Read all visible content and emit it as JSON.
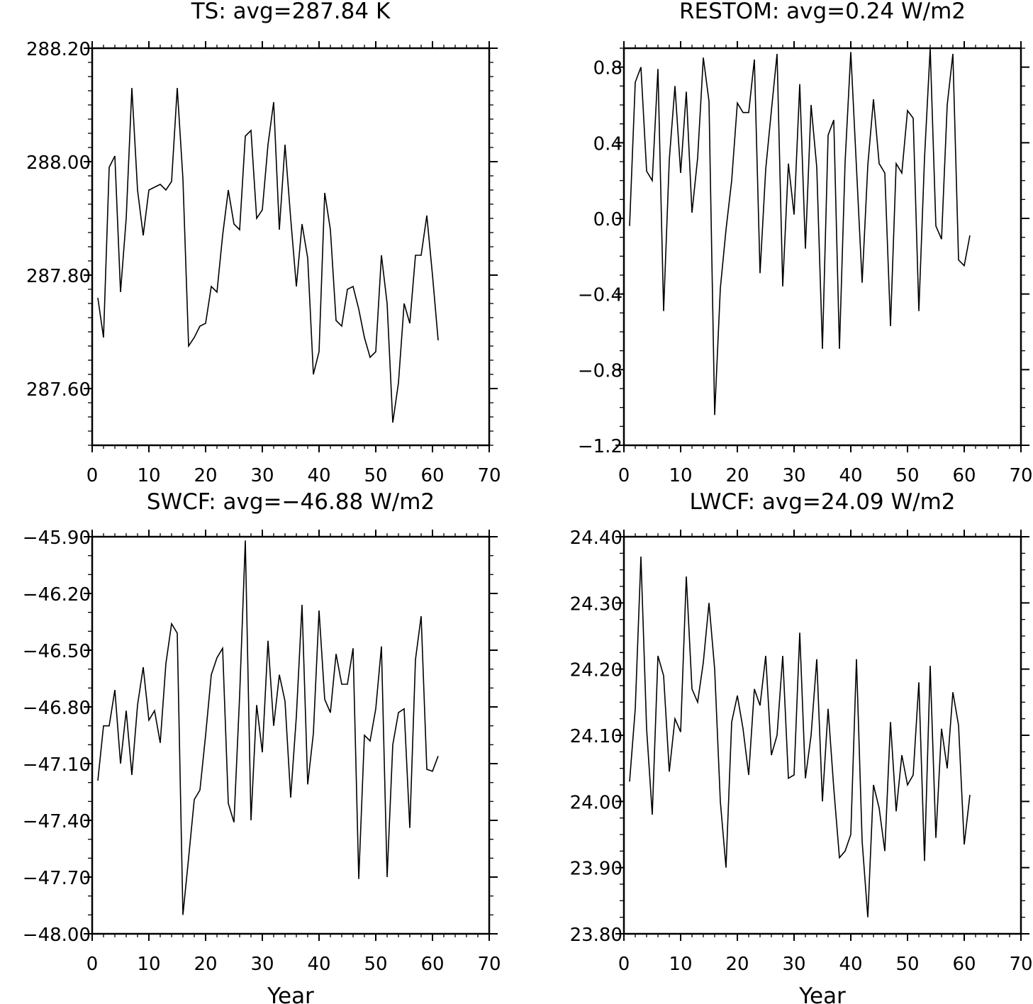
{
  "chart_data": [
    {
      "type": "line",
      "title": "TS: avg=287.84 K",
      "xlabel": "",
      "ylabel": "",
      "xlim": [
        0,
        70
      ],
      "ylim": [
        287.5,
        288.2
      ],
      "xticks": [
        0,
        10,
        20,
        30,
        40,
        50,
        60,
        70
      ],
      "xtick_labels": [
        "0",
        "10",
        "20",
        "30",
        "40",
        "50",
        "60",
        "70"
      ],
      "yticks": [
        287.6,
        287.8,
        288.0,
        288.2
      ],
      "ytick_labels": [
        "287.60",
        "287.80",
        "288.00",
        "288.20"
      ],
      "yminor_step": 0.025,
      "grid": false,
      "x": [
        1,
        2,
        3,
        4,
        5,
        6,
        7,
        8,
        9,
        10,
        11,
        12,
        13,
        14,
        15,
        16,
        17,
        18,
        19,
        20,
        21,
        22,
        23,
        24,
        25,
        26,
        27,
        28,
        29,
        30,
        31,
        32,
        33,
        34,
        35,
        36,
        37,
        38,
        39,
        40,
        41,
        42,
        43,
        44,
        45,
        46,
        47,
        48,
        49,
        50,
        51,
        52,
        53,
        54,
        55,
        56,
        57,
        58,
        59,
        60,
        61
      ],
      "values": [
        287.76,
        287.69,
        287.99,
        288.01,
        287.77,
        287.9,
        288.13,
        287.95,
        287.87,
        287.95,
        287.955,
        287.96,
        287.95,
        287.965,
        288.13,
        287.97,
        287.675,
        287.69,
        287.71,
        287.715,
        287.78,
        287.77,
        287.87,
        287.95,
        287.89,
        287.88,
        288.045,
        288.055,
        287.9,
        287.915,
        288.03,
        288.105,
        287.88,
        288.03,
        287.9,
        287.78,
        287.89,
        287.83,
        287.625,
        287.665,
        287.945,
        287.88,
        287.72,
        287.71,
        287.775,
        287.78,
        287.74,
        287.69,
        287.655,
        287.665,
        287.835,
        287.75,
        287.54,
        287.61,
        287.75,
        287.715,
        287.835,
        287.835,
        287.905,
        287.8,
        287.685
      ]
    },
    {
      "type": "line",
      "title": "RESTOM: avg=0.24 W/m2",
      "xlabel": "",
      "ylabel": "",
      "xlim": [
        0,
        70
      ],
      "ylim": [
        -1.2,
        0.9
      ],
      "xticks": [
        0,
        10,
        20,
        30,
        40,
        50,
        60,
        70
      ],
      "xtick_labels": [
        "0",
        "10",
        "20",
        "30",
        "40",
        "50",
        "60",
        "70"
      ],
      "yticks": [
        -1.2,
        -0.8,
        -0.4,
        0.0,
        0.4,
        0.8
      ],
      "ytick_labels": [
        "−1.2",
        "−0.8",
        "−0.4",
        "0.0",
        "0.4",
        "0.8"
      ],
      "yminor_step": 0.1,
      "grid": false,
      "x": [
        1,
        2,
        3,
        4,
        5,
        6,
        7,
        8,
        9,
        10,
        11,
        12,
        13,
        14,
        15,
        16,
        17,
        18,
        19,
        20,
        21,
        22,
        23,
        24,
        25,
        26,
        27,
        28,
        29,
        30,
        31,
        32,
        33,
        34,
        35,
        36,
        37,
        38,
        39,
        40,
        41,
        42,
        43,
        44,
        45,
        46,
        47,
        48,
        49,
        50,
        51,
        52,
        53,
        54,
        55,
        56,
        57,
        58,
        59,
        60,
        61
      ],
      "values": [
        -0.04,
        0.72,
        0.8,
        0.25,
        0.2,
        0.79,
        -0.49,
        0.31,
        0.7,
        0.24,
        0.67,
        0.03,
        0.32,
        0.85,
        0.62,
        -1.04,
        -0.37,
        -0.06,
        0.2,
        0.61,
        0.56,
        0.56,
        0.84,
        -0.29,
        0.26,
        0.57,
        0.87,
        -0.36,
        0.29,
        0.02,
        0.71,
        -0.16,
        0.6,
        0.27,
        -0.69,
        0.44,
        0.52,
        -0.69,
        0.3,
        0.88,
        0.27,
        -0.34,
        0.28,
        0.63,
        0.29,
        0.24,
        -0.57,
        0.29,
        0.24,
        0.57,
        0.53,
        -0.49,
        0.32,
        0.9,
        -0.04,
        -0.11,
        0.6,
        0.87,
        -0.22,
        -0.25,
        -0.09
      ]
    },
    {
      "type": "line",
      "title": "SWCF: avg=−46.88 W/m2",
      "xlabel": "Year",
      "ylabel": "",
      "xlim": [
        0,
        70
      ],
      "ylim": [
        -48.0,
        -45.9
      ],
      "xticks": [
        0,
        10,
        20,
        30,
        40,
        50,
        60,
        70
      ],
      "xtick_labels": [
        "0",
        "10",
        "20",
        "30",
        "40",
        "50",
        "60",
        "70"
      ],
      "yticks": [
        -48.0,
        -47.7,
        -47.4,
        -47.1,
        -46.8,
        -46.5,
        -46.2,
        -45.9
      ],
      "ytick_labels": [
        "−48.00",
        "−47.70",
        "−47.40",
        "−47.10",
        "−46.80",
        "−46.50",
        "−46.20",
        "−45.90"
      ],
      "yminor_step": 0.1,
      "grid": false,
      "x": [
        1,
        2,
        3,
        4,
        5,
        6,
        7,
        8,
        9,
        10,
        11,
        12,
        13,
        14,
        15,
        16,
        17,
        18,
        19,
        20,
        21,
        22,
        23,
        24,
        25,
        26,
        27,
        28,
        29,
        30,
        31,
        32,
        33,
        34,
        35,
        36,
        37,
        38,
        39,
        40,
        41,
        42,
        43,
        44,
        45,
        46,
        47,
        48,
        49,
        50,
        51,
        52,
        53,
        54,
        55,
        56,
        57,
        58,
        59,
        60,
        61
      ],
      "values": [
        -47.19,
        -46.9,
        -46.9,
        -46.71,
        -47.1,
        -46.82,
        -47.16,
        -46.79,
        -46.59,
        -46.87,
        -46.82,
        -46.99,
        -46.57,
        -46.36,
        -46.41,
        -47.9,
        -47.6,
        -47.29,
        -47.24,
        -46.95,
        -46.63,
        -46.54,
        -46.49,
        -47.31,
        -47.41,
        -46.74,
        -45.92,
        -47.4,
        -46.79,
        -47.04,
        -46.45,
        -46.9,
        -46.63,
        -46.77,
        -47.28,
        -46.85,
        -46.26,
        -47.21,
        -46.94,
        -46.29,
        -46.76,
        -46.83,
        -46.52,
        -46.68,
        -46.68,
        -46.49,
        -47.71,
        -46.95,
        -46.98,
        -46.81,
        -46.48,
        -47.7,
        -47.0,
        -46.83,
        -46.81,
        -47.44,
        -46.55,
        -46.32,
        -47.13,
        -47.14,
        -47.06
      ]
    },
    {
      "type": "line",
      "title": "LWCF: avg=24.09 W/m2",
      "xlabel": "Year",
      "ylabel": "",
      "xlim": [
        0,
        70
      ],
      "ylim": [
        23.8,
        24.4
      ],
      "xticks": [
        0,
        10,
        20,
        30,
        40,
        50,
        60,
        70
      ],
      "xtick_labels": [
        "0",
        "10",
        "20",
        "30",
        "40",
        "50",
        "60",
        "70"
      ],
      "yticks": [
        23.8,
        23.9,
        24.0,
        24.1,
        24.2,
        24.3,
        24.4
      ],
      "ytick_labels": [
        "23.80",
        "23.90",
        "24.00",
        "24.10",
        "24.20",
        "24.30",
        "24.40"
      ],
      "yminor_step": 0.025,
      "grid": false,
      "x": [
        1,
        2,
        3,
        4,
        5,
        6,
        7,
        8,
        9,
        10,
        11,
        12,
        13,
        14,
        15,
        16,
        17,
        18,
        19,
        20,
        21,
        22,
        23,
        24,
        25,
        26,
        27,
        28,
        29,
        30,
        31,
        32,
        33,
        34,
        35,
        36,
        37,
        38,
        39,
        40,
        41,
        42,
        43,
        44,
        45,
        46,
        47,
        48,
        49,
        50,
        51,
        52,
        53,
        54,
        55,
        56,
        57,
        58,
        59,
        60,
        61
      ],
      "values": [
        24.03,
        24.14,
        24.37,
        24.11,
        23.98,
        24.22,
        24.19,
        24.045,
        24.125,
        24.105,
        24.34,
        24.17,
        24.15,
        24.21,
        24.3,
        24.2,
        24.0,
        23.9,
        24.12,
        24.16,
        24.11,
        24.04,
        24.17,
        24.145,
        24.22,
        24.07,
        24.1,
        24.22,
        24.035,
        24.04,
        24.255,
        24.035,
        24.1,
        24.215,
        24.0,
        24.14,
        24.02,
        23.915,
        23.925,
        23.95,
        24.215,
        23.94,
        23.825,
        24.025,
        23.99,
        23.925,
        24.12,
        23.985,
        24.07,
        24.025,
        24.04,
        24.18,
        23.91,
        24.205,
        23.945,
        24.11,
        24.05,
        24.165,
        24.115,
        23.935,
        24.01
      ]
    }
  ]
}
